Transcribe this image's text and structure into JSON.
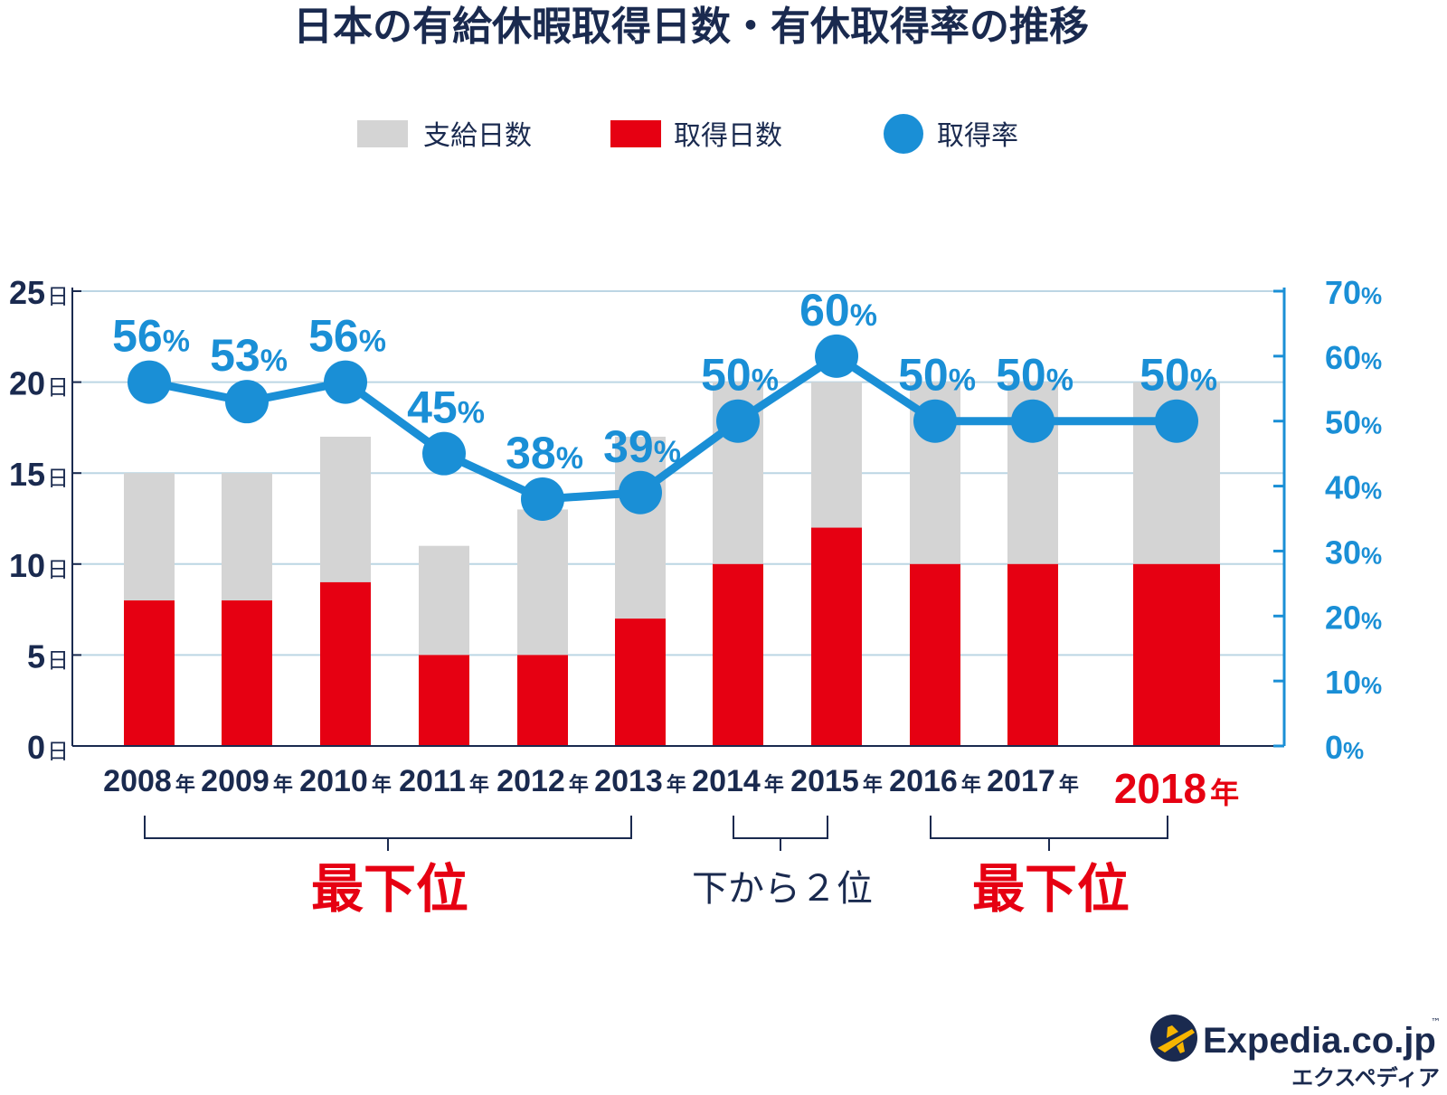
{
  "chart_data": {
    "type": "bar",
    "title": "日本の有給休暇取得日数・有休取得率の推移",
    "categories": [
      "2008",
      "2009",
      "2010",
      "2011",
      "2012",
      "2013",
      "2014",
      "2015",
      "2016",
      "2017",
      "2018"
    ],
    "category_suffix": "年",
    "series": [
      {
        "name": "支給日数",
        "values": [
          15,
          15,
          17,
          11,
          13,
          17,
          20,
          20,
          20,
          20,
          20
        ],
        "color": "#d4d4d4"
      },
      {
        "name": "取得日数",
        "values": [
          8,
          8,
          9,
          5,
          5,
          7,
          10,
          12,
          10,
          10,
          10
        ],
        "color": "#e60012"
      },
      {
        "name": "取得率",
        "values": [
          56,
          53,
          56,
          45,
          38,
          39,
          50,
          60,
          50,
          50,
          50
        ],
        "color": "#1a8fd6",
        "axis": "right"
      }
    ],
    "left_axis": {
      "ticks": [
        0,
        5,
        10,
        15,
        20,
        25
      ],
      "unit": "日",
      "ylim": [
        0,
        25
      ]
    },
    "right_axis": {
      "ticks": [
        0,
        10,
        20,
        30,
        40,
        50,
        60,
        70
      ],
      "unit": "%",
      "ylim": [
        0,
        70
      ]
    },
    "rate_labels": [
      "56%",
      "53%",
      "56%",
      "45%",
      "38%",
      "39%",
      "50%",
      "60%",
      "50%",
      "50%",
      "50%"
    ],
    "highlight_category": "2018",
    "grid": true,
    "legend_position": "top-center",
    "annotations": [
      {
        "text": "最下位",
        "from": "2008",
        "to": "2013",
        "color": "#e60012"
      },
      {
        "text": "下から２位",
        "from": "2014",
        "to": "2015",
        "color": "#1a2a4f"
      },
      {
        "text": "最下位",
        "from": "2016",
        "to": "2018",
        "color": "#e60012"
      }
    ]
  },
  "brand": {
    "name": "Expedia.co.jp",
    "tm": "™",
    "kana": "エクスペディア"
  },
  "colors": {
    "navy": "#1a2a4f",
    "accent_blue": "#1a8fd6",
    "red": "#e60012",
    "gray": "#d4d4d4",
    "grid": "#bcd6e4"
  }
}
